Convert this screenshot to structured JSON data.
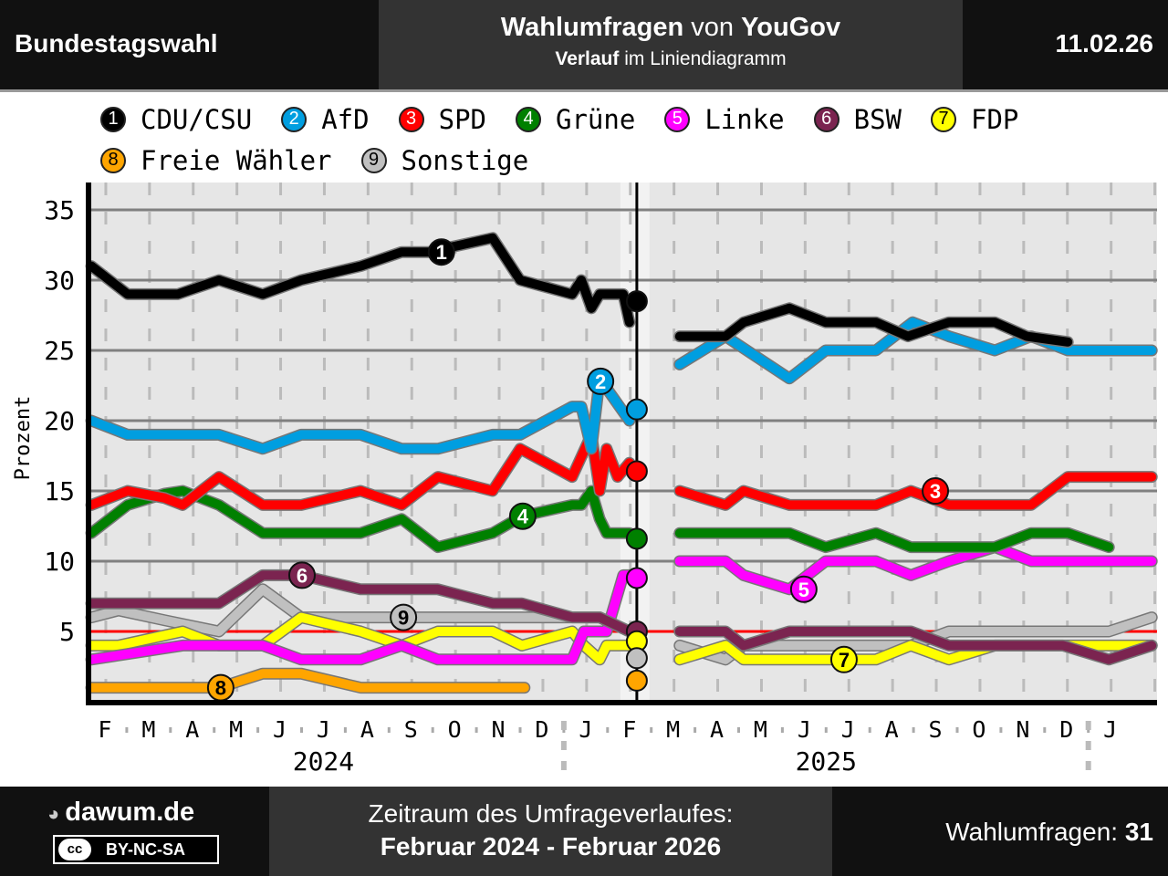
{
  "header": {
    "left": "Bundestagswahl",
    "title_bold1": "Wahlumfragen",
    "title_mid": " von ",
    "title_bold2": "YouGov",
    "sub_bold": "Verlauf",
    "sub_rest": " im Liniendiagramm",
    "date": "11.02.26"
  },
  "legend": [
    {
      "num": "1",
      "label": "CDU/CSU",
      "color": "#000000",
      "text": "#ffffff"
    },
    {
      "num": "2",
      "label": "AfD",
      "color": "#009ee0",
      "text": "#ffffff"
    },
    {
      "num": "3",
      "label": "SPD",
      "color": "#ff0000",
      "text": "#ffffff"
    },
    {
      "num": "4",
      "label": "Grüne",
      "color": "#008000",
      "text": "#ffffff"
    },
    {
      "num": "5",
      "label": "Linke",
      "color": "#ff00ff",
      "text": "#ffffff"
    },
    {
      "num": "6",
      "label": "BSW",
      "color": "#7b2450",
      "text": "#ffffff"
    },
    {
      "num": "7",
      "label": "FDP",
      "color": "#ffff00",
      "text": "#000000"
    },
    {
      "num": "8",
      "label": "Freie Wähler",
      "color": "#ffa500",
      "text": "#000000"
    },
    {
      "num": "9",
      "label": "Sonstige",
      "color": "#c0c0c0",
      "text": "#000000"
    }
  ],
  "chart_data": {
    "type": "line",
    "ylabel": "Prozent",
    "ylim": [
      0,
      37
    ],
    "yticks": [
      5,
      10,
      15,
      20,
      25,
      30,
      35
    ],
    "threshold": 5,
    "x_unit": "months since 1 Feb 2024",
    "xlim": [
      0.1,
      24.5
    ],
    "month_labels": [
      "F",
      "M",
      "A",
      "M",
      "J",
      "J",
      "A",
      "S",
      "O",
      "N",
      "D",
      "J",
      "F",
      "M",
      "A",
      "M",
      "J",
      "J",
      "A",
      "S",
      "O",
      "N",
      "D",
      "J"
    ],
    "year_labels": [
      {
        "label": "2024",
        "x": 5.5
      },
      {
        "label": "2025",
        "x": 17
      }
    ],
    "election": {
      "x": 12.67,
      "results": [
        28.5,
        20.8,
        16.4,
        11.6,
        8.8,
        5.0,
        4.3,
        1.5,
        3.1
      ]
    },
    "series": [
      {
        "name": "CDU/CSU",
        "label_at": [
          8.2,
          32
        ],
        "points": [
          [
            0.19,
            31
          ],
          [
            1.02,
            29
          ],
          [
            2.17,
            29
          ],
          [
            3.11,
            30
          ],
          [
            4.11,
            29
          ],
          [
            4.99,
            30
          ],
          [
            6.35,
            31
          ],
          [
            7.29,
            32
          ],
          [
            7.91,
            32
          ],
          [
            9.37,
            33
          ],
          [
            10.0,
            30
          ],
          [
            11.19,
            29
          ],
          [
            11.4,
            30
          ],
          [
            11.63,
            28
          ],
          [
            11.82,
            29
          ],
          [
            12.36,
            29
          ],
          [
            12.5,
            27
          ]
        ],
        "points2": [
          [
            13.65,
            26
          ],
          [
            14.7,
            26
          ],
          [
            15.11,
            27
          ],
          [
            16.16,
            28
          ],
          [
            16.99,
            27
          ],
          [
            18.14,
            27
          ],
          [
            18.87,
            26
          ],
          [
            19.81,
            27
          ],
          [
            20.86,
            27
          ],
          [
            21.59,
            26
          ],
          [
            22.53,
            25.6
          ]
        ]
      },
      {
        "name": "AfD",
        "label_at": [
          11.84,
          22.8
        ],
        "points": [
          [
            0.19,
            20
          ],
          [
            1.02,
            19
          ],
          [
            3.11,
            19
          ],
          [
            4.11,
            18
          ],
          [
            4.99,
            19
          ],
          [
            6.35,
            19
          ],
          [
            7.29,
            18
          ],
          [
            8.12,
            18
          ],
          [
            9.37,
            19
          ],
          [
            10.0,
            19
          ],
          [
            11.19,
            21
          ],
          [
            11.4,
            21
          ],
          [
            11.63,
            18
          ],
          [
            11.82,
            23
          ],
          [
            12.5,
            20
          ]
        ],
        "points2": [
          [
            13.65,
            24
          ],
          [
            14.7,
            26
          ],
          [
            16.16,
            23
          ],
          [
            16.99,
            25
          ],
          [
            18.14,
            25
          ],
          [
            18.98,
            27
          ],
          [
            19.81,
            26
          ],
          [
            20.86,
            25
          ],
          [
            21.69,
            26
          ],
          [
            22.53,
            25
          ],
          [
            23.47,
            25
          ],
          [
            24.45,
            25
          ]
        ]
      },
      {
        "name": "SPD",
        "label_at": [
          19.5,
          15
        ],
        "points": [
          [
            0.19,
            14
          ],
          [
            1.02,
            15
          ],
          [
            1.86,
            14.5
          ],
          [
            2.28,
            14
          ],
          [
            3.11,
            16
          ],
          [
            4.11,
            14
          ],
          [
            4.99,
            14
          ],
          [
            6.35,
            15
          ],
          [
            7.29,
            14
          ],
          [
            8.12,
            16
          ],
          [
            9.37,
            15
          ],
          [
            10.0,
            18
          ],
          [
            11.19,
            16
          ],
          [
            11.63,
            19
          ],
          [
            11.82,
            15
          ],
          [
            11.98,
            18
          ],
          [
            12.23,
            16
          ],
          [
            12.5,
            17
          ]
        ],
        "points2": [
          [
            13.65,
            15
          ],
          [
            14.7,
            14
          ],
          [
            15.11,
            15
          ],
          [
            16.16,
            14
          ],
          [
            18.14,
            14
          ],
          [
            18.94,
            15
          ],
          [
            19.81,
            14
          ],
          [
            21.69,
            14
          ],
          [
            22.53,
            16
          ],
          [
            23.47,
            16
          ],
          [
            24.45,
            16
          ]
        ]
      },
      {
        "name": "Grüne",
        "label_at": [
          10.06,
          13.2
        ],
        "points": [
          [
            0.19,
            12
          ],
          [
            1.02,
            14
          ],
          [
            1.86,
            14.8
          ],
          [
            2.28,
            15
          ],
          [
            3.11,
            14
          ],
          [
            4.11,
            12
          ],
          [
            4.99,
            12
          ],
          [
            6.35,
            12
          ],
          [
            7.29,
            13
          ],
          [
            8.12,
            11
          ],
          [
            9.37,
            12
          ],
          [
            10.04,
            13.2
          ],
          [
            11.19,
            14
          ],
          [
            11.4,
            14
          ],
          [
            11.63,
            15
          ],
          [
            11.82,
            13
          ],
          [
            11.98,
            12
          ],
          [
            12.5,
            12
          ]
        ],
        "points2": [
          [
            13.65,
            12
          ],
          [
            16.16,
            12
          ],
          [
            16.99,
            11
          ],
          [
            18.14,
            12
          ],
          [
            18.94,
            11
          ],
          [
            20.86,
            11
          ],
          [
            21.69,
            12
          ],
          [
            22.53,
            12
          ],
          [
            23.47,
            11
          ]
        ]
      },
      {
        "name": "Linke",
        "label_at": [
          16.49,
          8
        ],
        "points": [
          [
            0.19,
            3
          ],
          [
            2.28,
            4
          ],
          [
            3.11,
            4
          ],
          [
            4.11,
            4
          ],
          [
            4.99,
            3
          ],
          [
            6.35,
            3
          ],
          [
            7.29,
            4
          ],
          [
            8.12,
            3
          ],
          [
            9.37,
            3
          ],
          [
            11.19,
            3
          ],
          [
            11.46,
            5
          ],
          [
            11.98,
            5
          ],
          [
            12.36,
            9
          ],
          [
            12.5,
            9
          ]
        ],
        "points2": [
          [
            13.65,
            10
          ],
          [
            14.7,
            10
          ],
          [
            15.11,
            9
          ],
          [
            16.16,
            8
          ],
          [
            16.99,
            10
          ],
          [
            18.14,
            10
          ],
          [
            18.94,
            9
          ],
          [
            19.81,
            10
          ],
          [
            20.86,
            11
          ],
          [
            21.69,
            10
          ],
          [
            23.47,
            10
          ],
          [
            24.45,
            10
          ]
        ]
      },
      {
        "name": "BSW",
        "label_at": [
          5.01,
          9
        ],
        "points": [
          [
            0.19,
            7
          ],
          [
            3.11,
            7
          ],
          [
            4.11,
            9
          ],
          [
            4.99,
            9
          ],
          [
            6.35,
            8
          ],
          [
            8.12,
            8
          ],
          [
            9.37,
            7
          ],
          [
            10.04,
            7
          ],
          [
            11.19,
            6
          ],
          [
            11.82,
            6
          ],
          [
            12.5,
            5
          ]
        ],
        "points2": [
          [
            13.65,
            5
          ],
          [
            14.7,
            5
          ],
          [
            15.11,
            4
          ],
          [
            16.16,
            5
          ],
          [
            18.94,
            5
          ],
          [
            19.81,
            4
          ],
          [
            20.86,
            4
          ],
          [
            22.42,
            4
          ],
          [
            23.47,
            3
          ],
          [
            24.45,
            4
          ]
        ]
      },
      {
        "name": "FDP",
        "label_at": [
          17.41,
          3
        ],
        "points": [
          [
            0.19,
            4
          ],
          [
            0.81,
            4
          ],
          [
            2.28,
            5
          ],
          [
            3.11,
            4
          ],
          [
            4.11,
            4
          ],
          [
            4.99,
            6
          ],
          [
            6.35,
            5
          ],
          [
            7.29,
            4
          ],
          [
            8.12,
            5
          ],
          [
            9.37,
            5
          ],
          [
            10.04,
            4
          ],
          [
            11.19,
            5
          ],
          [
            11.46,
            4
          ],
          [
            11.82,
            3
          ],
          [
            11.98,
            4
          ],
          [
            12.5,
            4
          ]
        ],
        "points2": [
          [
            13.65,
            3
          ],
          [
            14.7,
            4
          ],
          [
            15.11,
            3
          ],
          [
            16.16,
            3
          ],
          [
            18.14,
            3
          ],
          [
            18.94,
            4
          ],
          [
            19.81,
            3
          ],
          [
            20.86,
            4
          ],
          [
            24.45,
            4
          ]
        ]
      },
      {
        "name": "Freie Wähler",
        "label_at": [
          3.15,
          1
        ],
        "points": [
          [
            0.19,
            1
          ],
          [
            3.11,
            1
          ],
          [
            4.11,
            2
          ],
          [
            4.99,
            2
          ],
          [
            6.35,
            1
          ],
          [
            8.12,
            1
          ],
          [
            10.1,
            1
          ]
        ],
        "points2": []
      },
      {
        "name": "Sonstige",
        "label_at": [
          7.33,
          6
        ],
        "points": [
          [
            0.19,
            6
          ],
          [
            0.81,
            6.5
          ],
          [
            1.86,
            5.8
          ],
          [
            3.11,
            5
          ],
          [
            4.11,
            8
          ],
          [
            4.99,
            6
          ],
          [
            6.35,
            6
          ],
          [
            8.12,
            6
          ],
          [
            9.37,
            6
          ],
          [
            10.04,
            6
          ],
          [
            11.19,
            6
          ],
          [
            11.82,
            6
          ],
          [
            12.5,
            5
          ]
        ],
        "points2": [
          [
            13.65,
            4
          ],
          [
            14.7,
            3
          ],
          [
            15.11,
            4
          ],
          [
            16.16,
            4
          ],
          [
            16.99,
            4
          ],
          [
            18.14,
            4
          ],
          [
            18.94,
            4
          ],
          [
            19.81,
            5
          ],
          [
            20.86,
            5
          ],
          [
            22.53,
            5
          ],
          [
            23.47,
            5
          ],
          [
            24.45,
            6
          ]
        ]
      }
    ]
  },
  "footer": {
    "logo": "dawum.de",
    "license": "BY-NC-SA",
    "cc": "cc",
    "period_label": "Zeitraum des Umfrageverlaufes:",
    "period": "Februar 2024 - Februar 2026",
    "polls_label": "Wahlumfragen: ",
    "polls_count": "31"
  }
}
